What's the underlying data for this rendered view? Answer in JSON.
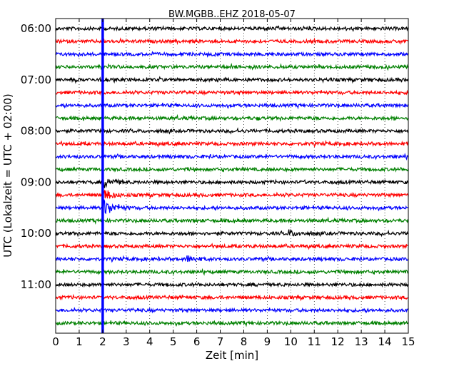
{
  "chart_data": {
    "type": "line",
    "title": "BW.MGBB..EHZ 2018-05-07",
    "xlabel": "Zeit  [min]",
    "ylabel": "UTC (Lokalzeit = UTC + 02:00)",
    "xlim": [
      0,
      15
    ],
    "x_ticks": [
      "0",
      "1",
      "2",
      "3",
      "4",
      "5",
      "6",
      "7",
      "8",
      "9",
      "10",
      "11",
      "12",
      "13",
      "14",
      "15"
    ],
    "y_ticks": [
      {
        "label": "06:00",
        "row": 0
      },
      {
        "label": "07:00",
        "row": 4
      },
      {
        "label": "08:00",
        "row": 8
      },
      {
        "label": "09:00",
        "row": 12
      },
      {
        "label": "10:00",
        "row": 16
      },
      {
        "label": "11:00",
        "row": 20
      }
    ],
    "traces_per_hour": 4,
    "trace_minutes": 15,
    "colors": [
      "#000000",
      "#ff0000",
      "#0000ff",
      "#008000"
    ],
    "rows": [
      {
        "start": "06:00",
        "color": "#000000"
      },
      {
        "start": "06:15",
        "color": "#ff0000"
      },
      {
        "start": "06:30",
        "color": "#0000ff"
      },
      {
        "start": "06:45",
        "color": "#008000"
      },
      {
        "start": "07:00",
        "color": "#000000"
      },
      {
        "start": "07:15",
        "color": "#ff0000"
      },
      {
        "start": "07:30",
        "color": "#0000ff"
      },
      {
        "start": "07:45",
        "color": "#008000"
      },
      {
        "start": "08:00",
        "color": "#000000"
      },
      {
        "start": "08:15",
        "color": "#ff0000"
      },
      {
        "start": "08:30",
        "color": "#0000ff"
      },
      {
        "start": "08:45",
        "color": "#008000"
      },
      {
        "start": "09:00",
        "color": "#000000"
      },
      {
        "start": "09:15",
        "color": "#ff0000"
      },
      {
        "start": "09:30",
        "color": "#0000ff"
      },
      {
        "start": "09:45",
        "color": "#008000"
      },
      {
        "start": "10:00",
        "color": "#000000"
      },
      {
        "start": "10:15",
        "color": "#ff0000"
      },
      {
        "start": "10:30",
        "color": "#0000ff"
      },
      {
        "start": "10:45",
        "color": "#008000"
      },
      {
        "start": "11:00",
        "color": "#000000"
      },
      {
        "start": "11:15",
        "color": "#ff0000"
      },
      {
        "start": "11:30",
        "color": "#0000ff"
      },
      {
        "start": "11:45",
        "color": "#008000"
      }
    ],
    "event_marker": {
      "x": 2.0,
      "color": "#0000ff"
    },
    "events": [
      {
        "row": 14,
        "x": 2.1,
        "amplitude": "large"
      },
      {
        "row": 13,
        "x": 2.1,
        "amplitude": "medium"
      },
      {
        "row": 12,
        "x": 2.1,
        "amplitude": "medium"
      },
      {
        "row": 16,
        "x": 9.9,
        "amplitude": "small"
      },
      {
        "row": 18,
        "x": 5.6,
        "amplitude": "small"
      }
    ],
    "grid": {
      "vertical": "dotted"
    }
  }
}
